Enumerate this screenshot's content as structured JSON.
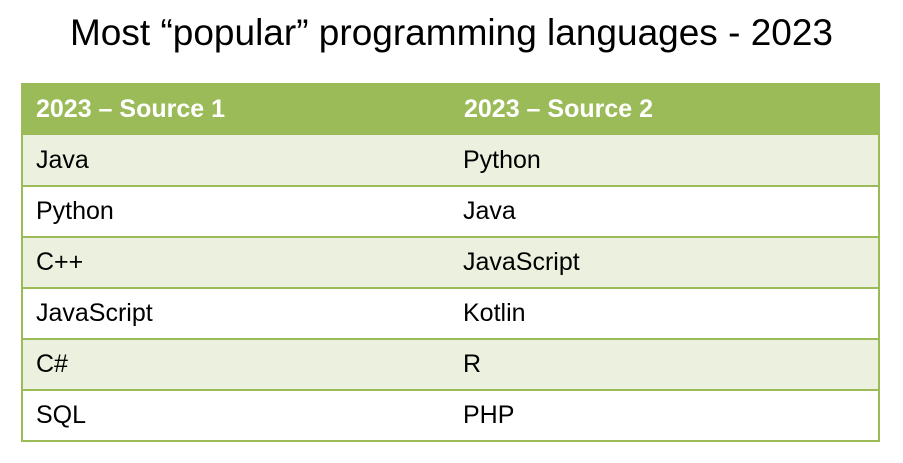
{
  "title": "Most “popular” programming languages - 2023",
  "table": {
    "headers": [
      "2023 – Source 1",
      "2023 – Source 2"
    ],
    "rows": [
      [
        "Java",
        "Python"
      ],
      [
        "Python",
        "Java"
      ],
      [
        "C++",
        "JavaScript"
      ],
      [
        "JavaScript",
        "Kotlin"
      ],
      [
        "C#",
        "R"
      ],
      [
        "SQL",
        "PHP"
      ]
    ]
  },
  "colors": {
    "header_bg": "#9bbb59",
    "header_text": "#ffffff",
    "band_row": "#ebf1de",
    "plain_row": "#ffffff",
    "border": "#9bbb59"
  }
}
